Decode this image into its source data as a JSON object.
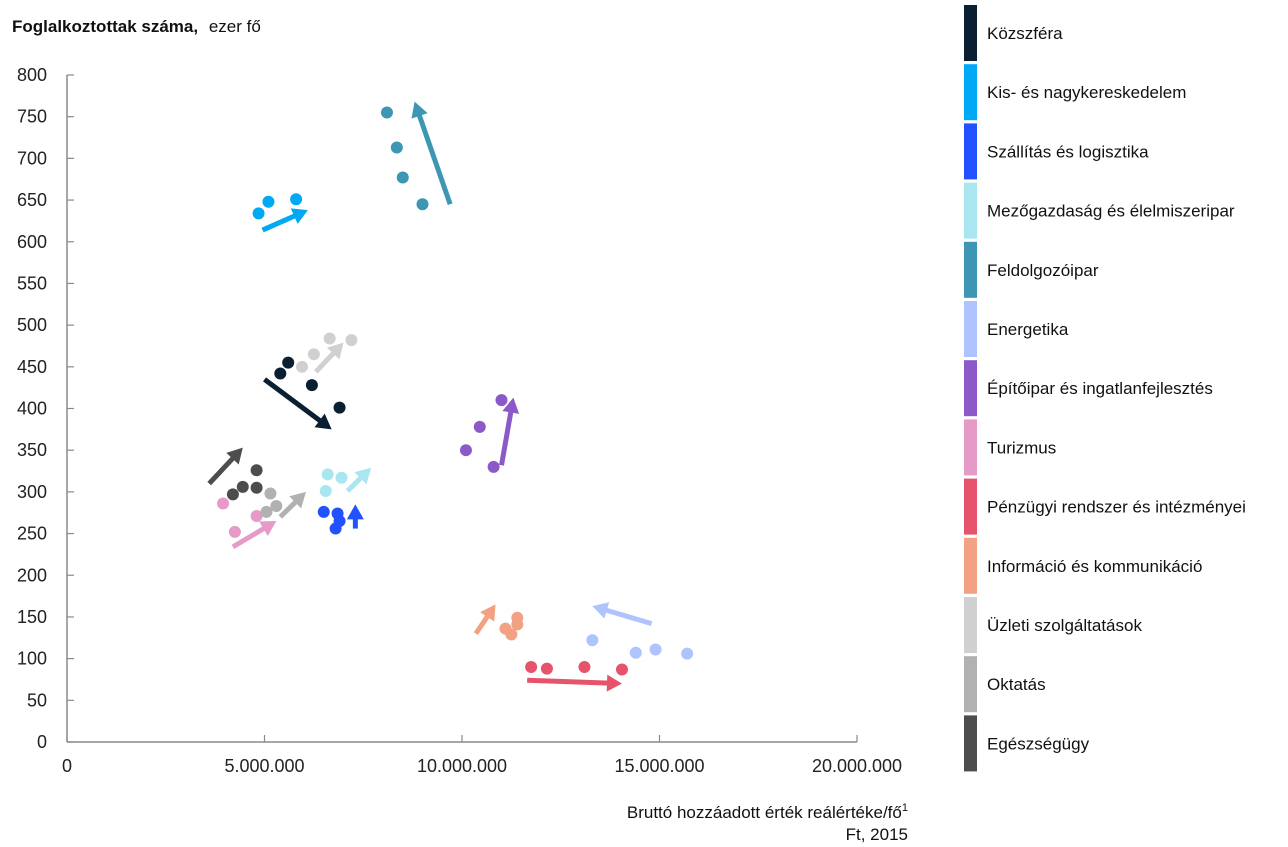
{
  "chart_data": {
    "type": "scatter",
    "title": {
      "bold": "Foglalkoztottak száma,",
      "normal": "ezer fő"
    },
    "xlabel": {
      "line1": "Bruttó hozzáadott érték reálértéke/fő",
      "superscript": "1",
      "line2": "Ft, 2015"
    },
    "xlim": [
      0,
      20000000
    ],
    "ylim": [
      0,
      800
    ],
    "x_ticks": [
      {
        "value": 0,
        "label": "0"
      },
      {
        "value": 5000000,
        "label": "5.000.000"
      },
      {
        "value": 10000000,
        "label": "10.000.000"
      },
      {
        "value": 15000000,
        "label": "15.000.000"
      },
      {
        "value": 20000000,
        "label": "20.000.000"
      }
    ],
    "y_ticks": [
      {
        "value": 0,
        "label": "0"
      },
      {
        "value": 50,
        "label": "50"
      },
      {
        "value": 100,
        "label": "100"
      },
      {
        "value": 150,
        "label": "150"
      },
      {
        "value": 200,
        "label": "200"
      },
      {
        "value": 250,
        "label": "250"
      },
      {
        "value": 300,
        "label": "300"
      },
      {
        "value": 350,
        "label": "350"
      },
      {
        "value": 400,
        "label": "400"
      },
      {
        "value": 450,
        "label": "450"
      },
      {
        "value": 500,
        "label": "500"
      },
      {
        "value": 550,
        "label": "550"
      },
      {
        "value": 600,
        "label": "600"
      },
      {
        "value": 650,
        "label": "650"
      },
      {
        "value": 700,
        "label": "700"
      },
      {
        "value": 750,
        "label": "750"
      },
      {
        "value": 800,
        "label": "800"
      }
    ],
    "grid": false,
    "legend_position": "right",
    "series": [
      {
        "name": "Közszféra",
        "color": "#0b1f33",
        "points": [
          [
            5400000,
            442
          ],
          [
            5600000,
            455
          ],
          [
            6200000,
            428
          ],
          [
            6900000,
            401
          ]
        ],
        "arrow": {
          "from": [
            5000000,
            435
          ],
          "to": [
            6700000,
            375
          ]
        }
      },
      {
        "name": "Kis- és nagykereskedelem",
        "color": "#00a9f4",
        "points": [
          [
            4850000,
            634
          ],
          [
            5100000,
            648
          ],
          [
            5800000,
            651
          ]
        ],
        "arrow": {
          "from": [
            4950000,
            614
          ],
          "to": [
            6100000,
            638
          ]
        }
      },
      {
        "name": "Szállítás és logisztika",
        "color": "#2251ff",
        "points": [
          [
            6500000,
            276
          ],
          [
            6850000,
            274
          ],
          [
            6900000,
            265
          ],
          [
            6800000,
            256
          ]
        ],
        "arrow": {
          "from": [
            7300000,
            256
          ],
          "to": [
            7300000,
            285
          ]
        }
      },
      {
        "name": "Mezőgazdaság és élelmiszeripar",
        "color": "#aae6f0",
        "points": [
          [
            6600000,
            321
          ],
          [
            6950000,
            317
          ],
          [
            6550000,
            301
          ]
        ],
        "arrow": {
          "from": [
            7100000,
            301
          ],
          "to": [
            7700000,
            329
          ]
        }
      },
      {
        "name": "Feldolgozóipar",
        "color": "#3c96b4",
        "points": [
          [
            8100000,
            755
          ],
          [
            8350000,
            713
          ],
          [
            8500000,
            677
          ],
          [
            9000000,
            645
          ]
        ],
        "arrow": {
          "from": [
            9700000,
            645
          ],
          "to": [
            8800000,
            768
          ]
        }
      },
      {
        "name": "Energetika",
        "color": "#afc3ff",
        "points": [
          [
            13300000,
            122
          ],
          [
            14400000,
            107
          ],
          [
            14900000,
            111
          ],
          [
            15700000,
            106
          ]
        ],
        "arrow": {
          "from": [
            14800000,
            142
          ],
          "to": [
            13300000,
            163
          ]
        }
      },
      {
        "name": "Építőipar és ingatlanfejlesztés",
        "color": "#8c5ac8",
        "points": [
          [
            10100000,
            350
          ],
          [
            10450000,
            378
          ],
          [
            11000000,
            410
          ],
          [
            10800000,
            330
          ]
        ],
        "arrow": {
          "from": [
            11000000,
            332
          ],
          "to": [
            11300000,
            413
          ]
        }
      },
      {
        "name": "Turizmus",
        "color": "#e69ac8",
        "points": [
          [
            3950000,
            286
          ],
          [
            4250000,
            252
          ],
          [
            4800000,
            271
          ]
        ],
        "arrow": {
          "from": [
            4200000,
            234
          ],
          "to": [
            5300000,
            265
          ]
        }
      },
      {
        "name": "Pénzügyi rendszer és intézményei",
        "color": "#e5546c",
        "points": [
          [
            11750000,
            90
          ],
          [
            12150000,
            88
          ],
          [
            13100000,
            90
          ],
          [
            14050000,
            87
          ]
        ],
        "arrow": {
          "from": [
            11650000,
            74
          ],
          "to": [
            14050000,
            70
          ]
        }
      },
      {
        "name": "Információ és kommunikáció",
        "color": "#f3a183",
        "points": [
          [
            11100000,
            136
          ],
          [
            11250000,
            129
          ],
          [
            11400000,
            141
          ],
          [
            11400000,
            149
          ]
        ],
        "arrow": {
          "from": [
            10350000,
            130
          ],
          "to": [
            10850000,
            165
          ]
        }
      },
      {
        "name": "Üzleti szolgáltatások",
        "color": "#d0d0d0",
        "points": [
          [
            5950000,
            450
          ],
          [
            6250000,
            465
          ],
          [
            6650000,
            484
          ],
          [
            7200000,
            482
          ]
        ],
        "arrow": {
          "from": [
            6300000,
            444
          ],
          "to": [
            7000000,
            479
          ]
        }
      },
      {
        "name": "Oktatás",
        "color": "#b1b1b1",
        "points": [
          [
            5150000,
            298
          ],
          [
            5050000,
            276
          ],
          [
            5300000,
            283
          ]
        ],
        "arrow": {
          "from": [
            5400000,
            270
          ],
          "to": [
            6050000,
            300
          ]
        }
      },
      {
        "name": "Egészségügy",
        "color": "#4d4d4d",
        "points": [
          [
            4200000,
            297
          ],
          [
            4450000,
            306
          ],
          [
            4800000,
            305
          ],
          [
            4800000,
            326
          ]
        ],
        "arrow": {
          "from": [
            3600000,
            310
          ],
          "to": [
            4450000,
            353
          ]
        }
      }
    ]
  }
}
